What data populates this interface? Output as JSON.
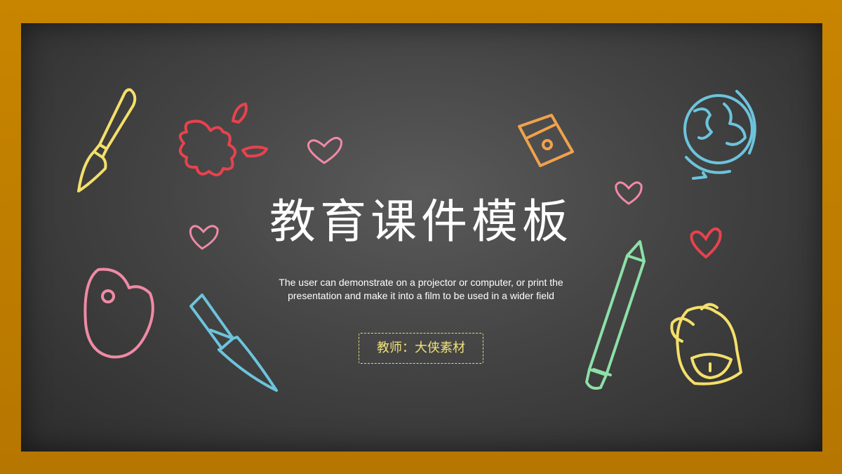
{
  "title": "教育课件模板",
  "subtitle": {
    "line1": "The user can demonstrate on a projector or computer, or print the",
    "line2": "presentation and make it into a film to be used in a wider field"
  },
  "teacher_label": "教师：大侠素材",
  "colors": {
    "frame": "#c88500",
    "board": "#444444",
    "yellow": "#f4e06a",
    "red": "#e8424e",
    "pink": "#f08aa6",
    "blue": "#6cc4dc",
    "orange": "#f0a24c",
    "green": "#8de0a8"
  },
  "icons": [
    "paintbrush-icon",
    "paint-splash-icon",
    "heart-icon",
    "pencil-sharpener-icon",
    "globe-icon",
    "palette-icon",
    "craft-knife-icon",
    "pencil-icon",
    "backpack-icon"
  ]
}
